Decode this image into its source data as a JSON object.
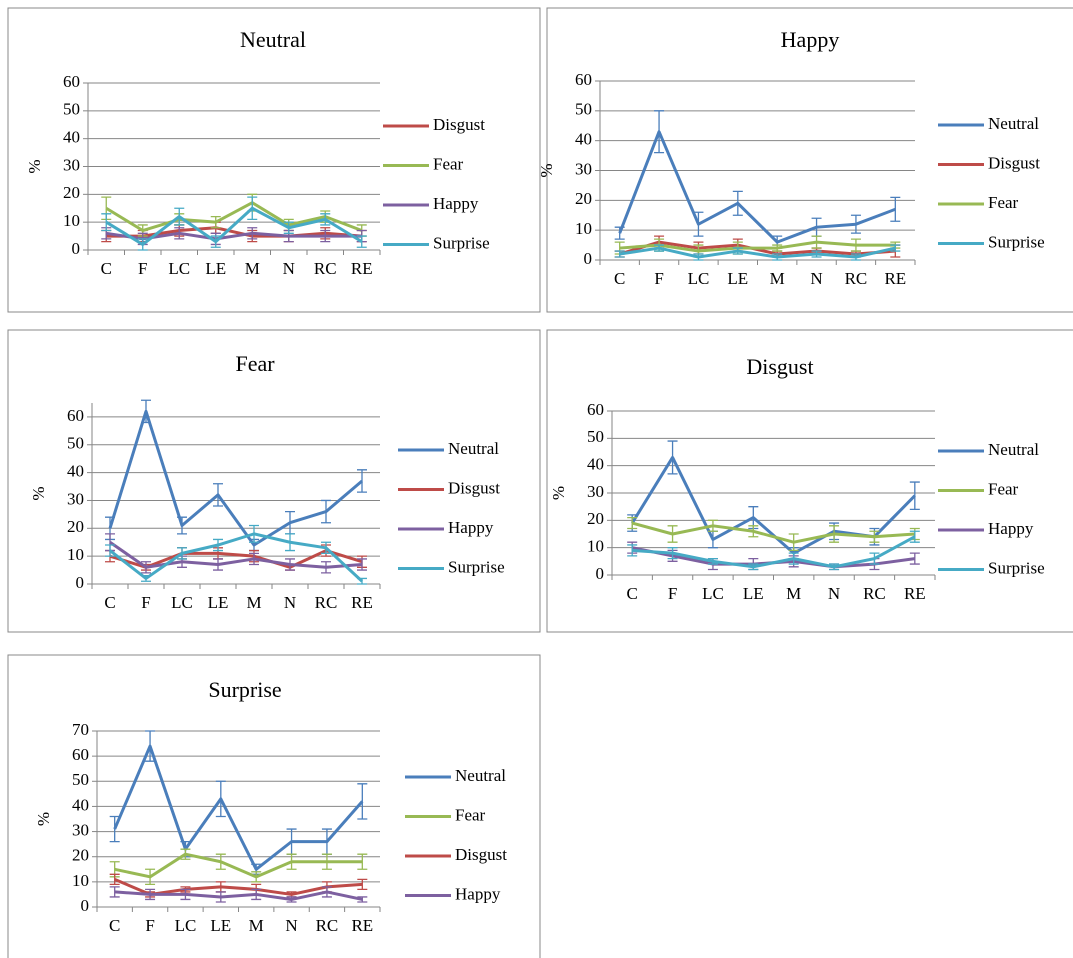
{
  "chart_data": [
    {
      "type": "line",
      "title": "Neutral",
      "ylabel": "%",
      "categories": [
        "C",
        "F",
        "LC",
        "LE",
        "M",
        "N",
        "RC",
        "RE"
      ],
      "ylim": [
        0,
        60
      ],
      "yticks": [
        0,
        10,
        20,
        30,
        40,
        50,
        60
      ],
      "grid": true,
      "series": [
        {
          "name": "Disgust",
          "color": "#be4b48",
          "values": [
            5,
            5,
            7,
            8,
            5,
            5,
            6,
            5
          ],
          "errors": [
            2,
            2,
            2,
            2,
            2,
            2,
            2,
            2
          ]
        },
        {
          "name": "Fear",
          "color": "#98b954",
          "values": [
            15,
            7,
            11,
            10,
            17,
            9,
            12,
            7
          ],
          "errors": [
            4,
            2,
            2,
            2,
            3,
            2,
            2,
            2
          ]
        },
        {
          "name": "Happy",
          "color": "#7d60a0",
          "values": [
            6,
            4,
            6,
            4,
            6,
            5,
            5,
            5
          ],
          "errors": [
            2,
            2,
            2,
            2,
            2,
            2,
            2,
            2
          ]
        },
        {
          "name": "Surprise",
          "color": "#46aac5",
          "values": [
            10,
            2,
            12,
            3,
            15,
            8,
            11,
            3
          ],
          "errors": [
            3,
            2,
            3,
            2,
            4,
            2,
            2,
            2
          ]
        }
      ]
    },
    {
      "type": "line",
      "title": "Happy",
      "ylabel": "%",
      "categories": [
        "C",
        "F",
        "LC",
        "LE",
        "M",
        "N",
        "RC",
        "RE"
      ],
      "ylim": [
        0,
        60
      ],
      "yticks": [
        0,
        10,
        20,
        30,
        40,
        50,
        60
      ],
      "grid": true,
      "series": [
        {
          "name": "Neutral",
          "color": "#4a7ebb",
          "values": [
            9,
            43,
            12,
            19,
            6,
            11,
            12,
            17
          ],
          "errors": [
            2,
            7,
            4,
            4,
            2,
            3,
            3,
            4
          ]
        },
        {
          "name": "Disgust",
          "color": "#be4b48",
          "values": [
            2,
            6,
            4,
            5,
            2,
            3,
            2,
            3
          ],
          "errors": [
            1,
            2,
            2,
            2,
            1,
            1,
            1,
            2
          ]
        },
        {
          "name": "Fear",
          "color": "#98b954",
          "values": [
            4,
            5,
            3,
            4,
            4,
            6,
            5,
            5
          ],
          "errors": [
            2,
            2,
            2,
            2,
            1,
            2,
            2,
            1
          ]
        },
        {
          "name": "Surprise",
          "color": "#46aac5",
          "values": [
            2,
            4,
            1,
            3,
            1,
            2,
            1,
            4
          ],
          "errors": [
            1,
            1,
            1,
            1,
            1,
            1,
            1,
            1
          ]
        }
      ]
    },
    {
      "type": "line",
      "title": "Fear",
      "ylabel": "%",
      "categories": [
        "C",
        "F",
        "LC",
        "LE",
        "M",
        "N",
        "RC",
        "RE"
      ],
      "ylim": [
        0,
        65
      ],
      "yticks": [
        0,
        10,
        20,
        30,
        40,
        50,
        60
      ],
      "grid": true,
      "series": [
        {
          "name": "Neutral",
          "color": "#4a7ebb",
          "values": [
            20,
            62,
            21,
            32,
            14,
            22,
            26,
            37
          ],
          "errors": [
            4,
            4,
            3,
            4,
            2,
            4,
            4,
            4
          ]
        },
        {
          "name": "Disgust",
          "color": "#be4b48",
          "values": [
            10,
            6,
            11,
            11,
            10,
            6,
            12,
            8
          ],
          "errors": [
            2,
            1,
            2,
            2,
            2,
            1,
            2,
            2
          ]
        },
        {
          "name": "Happy",
          "color": "#7d60a0",
          "values": [
            15,
            6,
            8,
            7,
            9,
            7,
            6,
            7
          ],
          "errors": [
            3,
            2,
            2,
            2,
            2,
            2,
            2,
            2
          ]
        },
        {
          "name": "Surprise",
          "color": "#46aac5",
          "values": [
            12,
            2,
            11,
            14,
            18,
            15,
            13,
            1
          ],
          "errors": [
            2,
            1,
            2,
            2,
            3,
            3,
            2,
            1
          ]
        }
      ]
    },
    {
      "type": "line",
      "title": "Disgust",
      "ylabel": "%",
      "categories": [
        "C",
        "F",
        "LC",
        "LE",
        "M",
        "N",
        "RC",
        "RE"
      ],
      "ylim": [
        0,
        60
      ],
      "yticks": [
        0,
        10,
        20,
        30,
        40,
        50,
        60
      ],
      "grid": true,
      "series": [
        {
          "name": "Neutral",
          "color": "#4a7ebb",
          "values": [
            19,
            43,
            13,
            21,
            8,
            16,
            14,
            29
          ],
          "errors": [
            3,
            6,
            3,
            4,
            2,
            3,
            3,
            5
          ]
        },
        {
          "name": "Fear",
          "color": "#98b954",
          "values": [
            19,
            15,
            18,
            16,
            12,
            15,
            14,
            15
          ],
          "errors": [
            2,
            3,
            2,
            2,
            3,
            3,
            2,
            2
          ]
        },
        {
          "name": "Happy",
          "color": "#7d60a0",
          "values": [
            10,
            7,
            4,
            4,
            5,
            3,
            4,
            6
          ],
          "errors": [
            2,
            2,
            2,
            2,
            2,
            1,
            2,
            2
          ]
        },
        {
          "name": "Surprise",
          "color": "#46aac5",
          "values": [
            9,
            8,
            5,
            3,
            6,
            3,
            6,
            14
          ],
          "errors": [
            2,
            2,
            1,
            1,
            2,
            1,
            2,
            2
          ]
        }
      ]
    },
    {
      "type": "line",
      "title": "Surprise",
      "ylabel": "%",
      "categories": [
        "C",
        "F",
        "LC",
        "LE",
        "M",
        "N",
        "RC",
        "RE"
      ],
      "ylim": [
        0,
        70
      ],
      "yticks": [
        0,
        10,
        20,
        30,
        40,
        50,
        60,
        70
      ],
      "grid": true,
      "series": [
        {
          "name": "Neutral",
          "color": "#4a7ebb",
          "values": [
            31,
            64,
            23,
            43,
            15,
            26,
            26,
            42
          ],
          "errors": [
            5,
            6,
            3,
            7,
            2,
            5,
            5,
            7
          ]
        },
        {
          "name": "Fear",
          "color": "#98b954",
          "values": [
            15,
            12,
            21,
            18,
            12,
            18,
            18,
            18
          ],
          "errors": [
            3,
            3,
            2,
            3,
            2,
            3,
            3,
            3
          ]
        },
        {
          "name": "Disgust",
          "color": "#be4b48",
          "values": [
            11,
            5,
            7,
            8,
            7,
            5,
            8,
            9
          ],
          "errors": [
            2,
            1,
            1,
            2,
            2,
            1,
            2,
            2
          ]
        },
        {
          "name": "Happy",
          "color": "#7d60a0",
          "values": [
            6,
            5,
            5,
            4,
            5,
            3,
            6,
            3
          ],
          "errors": [
            2,
            2,
            2,
            2,
            2,
            1,
            2,
            1
          ]
        }
      ]
    }
  ]
}
